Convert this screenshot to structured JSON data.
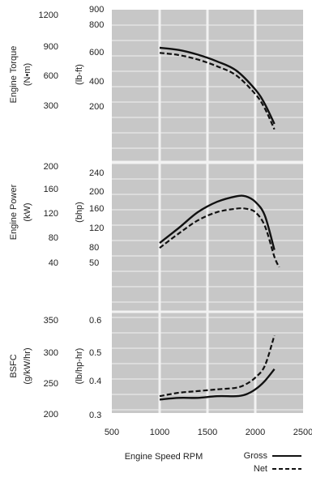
{
  "chart_data": {
    "type": "line",
    "xlabel": "Engine Speed RPM",
    "x_ticks": [
      500,
      1000,
      1500,
      2000,
      2500
    ],
    "xlim": [
      500,
      2500
    ],
    "legend": {
      "placement": "bottom-right",
      "entries": [
        {
          "name": "Gross",
          "style": "solid"
        },
        {
          "name": "Net",
          "style": "dashed"
        }
      ]
    },
    "panels": [
      {
        "label": "Engine Torque",
        "unit_primary": "(N•m)",
        "unit_secondary": "(lb-ft)",
        "ticks_primary": [
          "1200",
          "900",
          "600",
          "300"
        ],
        "ticks_secondary": [
          "900",
          "800",
          "600",
          "400",
          "200"
        ],
        "ylim": [
          70,
          910
        ],
        "series": [
          {
            "name": "Gross",
            "x": [
              1000,
              1200,
              1400,
              1600,
              1800,
              2000,
              2100,
              2200
            ],
            "y": [
              700,
              688,
              662,
              625,
              575,
              470,
              390,
              280
            ]
          },
          {
            "name": "Net",
            "x": [
              1000,
              1200,
              1400,
              1600,
              1800,
              2000,
              2100,
              2200
            ],
            "y": [
              672,
              660,
              635,
              598,
              548,
              445,
              365,
              250
            ]
          }
        ]
      },
      {
        "label": "Engine Power",
        "unit_primary": "(kW)",
        "unit_secondary": "(bhp)",
        "ticks_primary": [
          "200",
          "160",
          "120",
          "80",
          "40"
        ],
        "ticks_secondary": [
          "240",
          "200",
          "160",
          "120",
          "80",
          "50"
        ],
        "ylim": [
          30,
          248
        ],
        "series": [
          {
            "name": "Gross",
            "x": [
              1000,
              1200,
              1400,
              1600,
              1800,
              1900,
              2000,
              2100,
              2200
            ],
            "y": [
              130,
              152,
              175,
              190,
              198,
              198,
              190,
              170,
              120
            ]
          },
          {
            "name": "Net",
            "x": [
              1000,
              1200,
              1400,
              1600,
              1800,
              1900,
              2000,
              2100,
              2200,
              2250
            ],
            "y": [
              123,
              144,
              163,
              175,
              180,
              180,
              175,
              155,
              110,
              95
            ]
          }
        ]
      },
      {
        "label": "BSFC",
        "unit_primary": "(g/kW/hr)",
        "unit_secondary": "(lb/hp-hr)",
        "ticks_primary": [
          "350",
          "300",
          "250",
          "200"
        ],
        "ticks_secondary": [
          "0.6",
          "0.5",
          "0.4",
          "0.3"
        ],
        "ylim": [
          0.3,
          0.6
        ],
        "series": [
          {
            "name": "Gross",
            "x": [
              1000,
              1200,
              1400,
              1600,
              1800,
              1900,
              2000,
              2100,
              2200
            ],
            "y": [
              0.34,
              0.345,
              0.345,
              0.35,
              0.35,
              0.355,
              0.37,
              0.395,
              0.43
            ]
          },
          {
            "name": "Net",
            "x": [
              1000,
              1200,
              1400,
              1600,
              1800,
              1900,
              2000,
              2100,
              2200
            ],
            "y": [
              0.35,
              0.36,
              0.365,
              0.37,
              0.375,
              0.385,
              0.405,
              0.44,
              0.53
            ]
          }
        ]
      }
    ]
  },
  "colors": {
    "plot_background": "#c7c7c7",
    "grid": "#f2f2f2",
    "line": "#111111",
    "text": "#222222"
  }
}
